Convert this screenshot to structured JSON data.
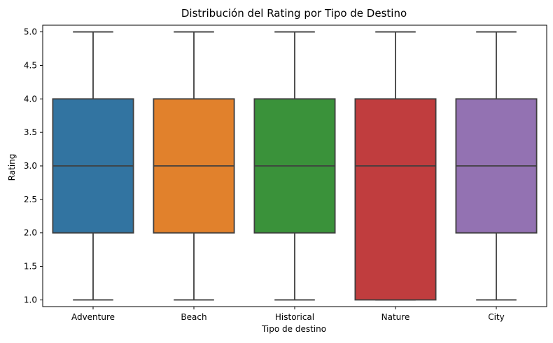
{
  "chart_data": {
    "type": "box",
    "title": "Distribución del Rating por Tipo de Destino",
    "xlabel": "Tipo de destino",
    "ylabel": "Rating",
    "ylim": [
      0.9,
      5.1
    ],
    "yticks": [
      "1.0",
      "1.5",
      "2.0",
      "2.5",
      "3.0",
      "3.5",
      "4.0",
      "4.5",
      "5.0"
    ],
    "grid": false,
    "categories": [
      "Adventure",
      "Beach",
      "Historical",
      "Nature",
      "City"
    ],
    "boxes": [
      {
        "category": "Adventure",
        "min": 1.0,
        "q1": 2.0,
        "median": 3.0,
        "q3": 4.0,
        "max": 5.0,
        "color": "#3274a1"
      },
      {
        "category": "Beach",
        "min": 1.0,
        "q1": 2.0,
        "median": 3.0,
        "q3": 4.0,
        "max": 5.0,
        "color": "#e1812c"
      },
      {
        "category": "Historical",
        "min": 1.0,
        "q1": 2.0,
        "median": 3.0,
        "q3": 4.0,
        "max": 5.0,
        "color": "#3a923a"
      },
      {
        "category": "Nature",
        "min": 1.0,
        "q1": 1.0,
        "median": 3.0,
        "q3": 4.0,
        "max": 5.0,
        "color": "#c03d3e"
      },
      {
        "category": "City",
        "min": 1.0,
        "q1": 2.0,
        "median": 3.0,
        "q3": 4.0,
        "max": 5.0,
        "color": "#9372b2"
      }
    ]
  }
}
